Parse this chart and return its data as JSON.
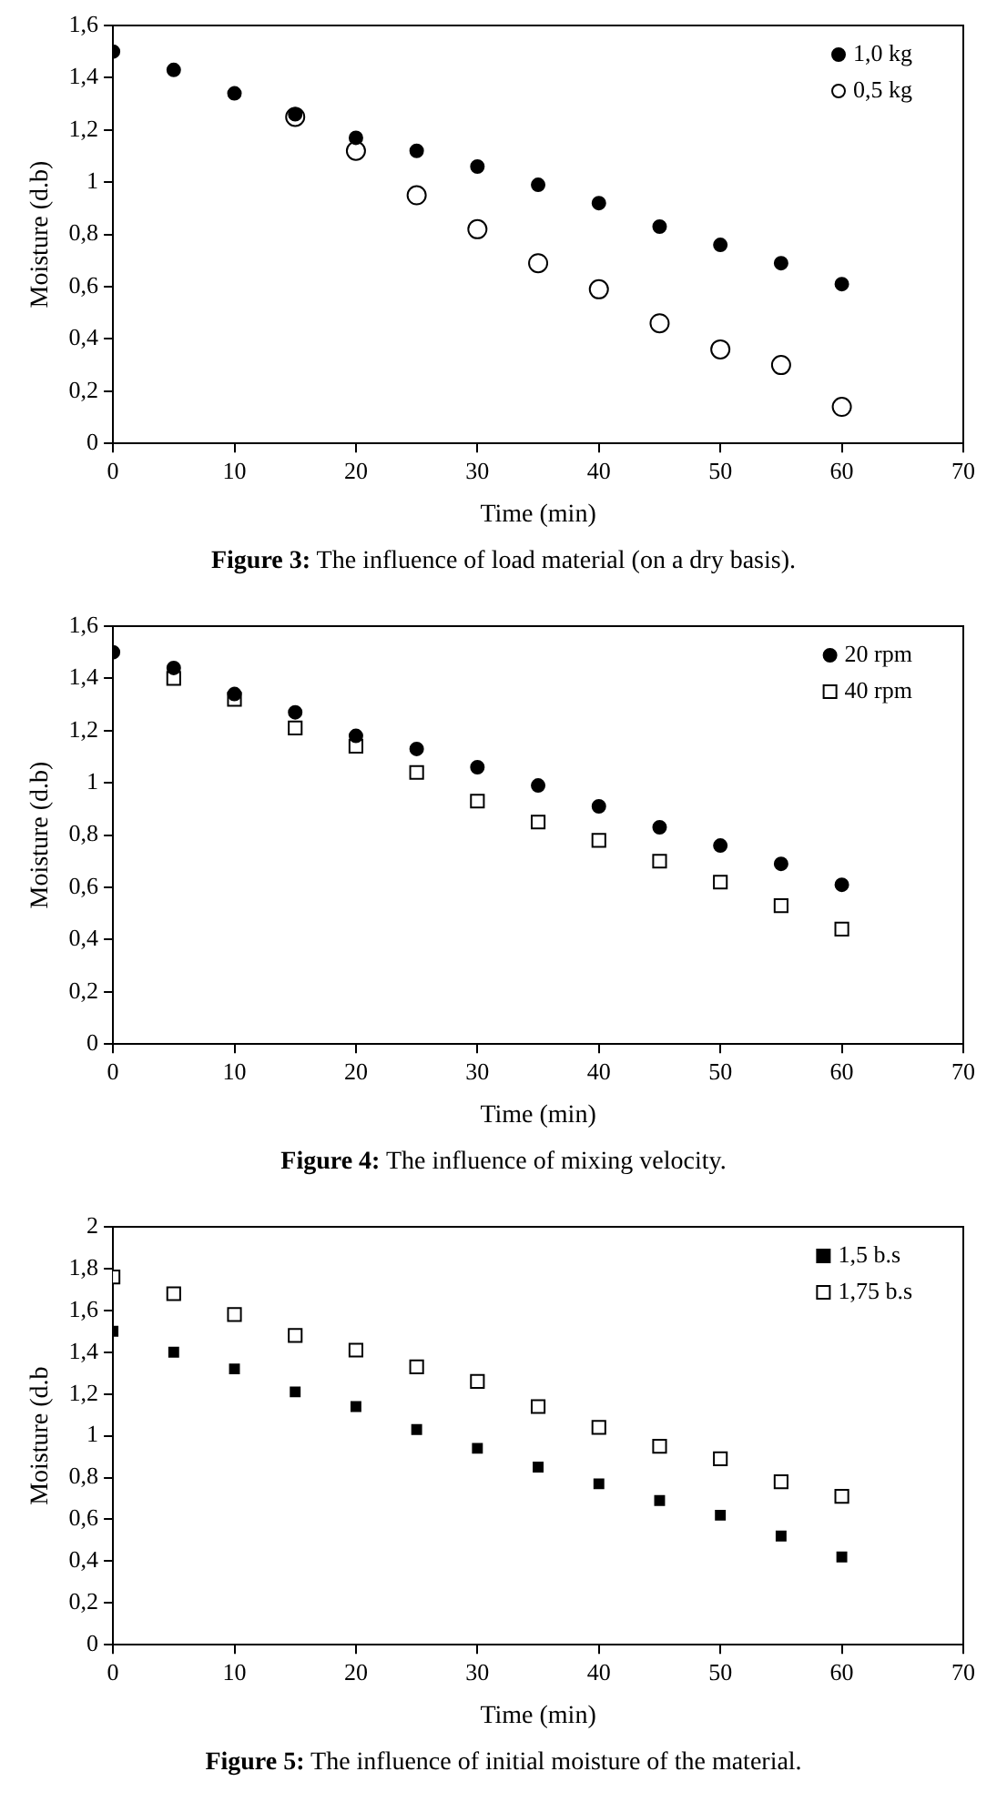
{
  "chart_data": [
    {
      "type": "scatter",
      "xlabel": "Time (min)",
      "ylabel": "Moisture (d.b)",
      "annotations": [
        "Figure 3: The influence of load material (on a dry basis)."
      ],
      "x": [
        0,
        5,
        10,
        15,
        20,
        25,
        30,
        35,
        40,
        45,
        50,
        55,
        60
      ],
      "series": [
        {
          "name": "1,0 kg",
          "color": "#000000",
          "marker": "circle",
          "values": [
            1.5,
            1.43,
            1.34,
            1.26,
            1.17,
            1.12,
            1.06,
            0.99,
            0.92,
            0.83,
            0.76,
            0.69,
            0.61
          ]
        },
        {
          "name": "0,5 kg",
          "color": "#ffffff",
          "marker": "circle",
          "values": [
            null,
            null,
            null,
            1.25,
            1.12,
            0.95,
            0.82,
            0.69,
            0.59,
            0.46,
            0.36,
            0.3,
            0.14
          ]
        }
      ],
      "xlim": [
        0,
        70
      ],
      "xticks": [
        0,
        10,
        20,
        30,
        40,
        50,
        60,
        70
      ],
      "ylim": [
        0,
        1.6
      ],
      "yticks": [
        {
          "value": 0,
          "label": "0"
        },
        {
          "value": 0.2,
          "label": "0,2"
        },
        {
          "value": 0.4,
          "label": "0,4"
        },
        {
          "value": 0.6,
          "label": "0,6"
        },
        {
          "value": 0.8,
          "label": "0,8"
        },
        {
          "value": 1,
          "label": "1"
        },
        {
          "value": 1.2,
          "label": "1,2"
        },
        {
          "value": 1.4,
          "label": "1,4"
        },
        {
          "value": 1.6,
          "label": "1,6"
        }
      ],
      "grid": false,
      "legend": "top right"
    },
    {
      "type": "scatter",
      "xlabel": "Time (min)",
      "ylabel": "Moisture (d.b)",
      "annotations": [
        "Figure 4: The influence of mixing velocity."
      ],
      "x": [
        0,
        5,
        10,
        15,
        20,
        25,
        30,
        35,
        40,
        45,
        50,
        55,
        60
      ],
      "series": [
        {
          "name": "20 rpm",
          "color": "#000000",
          "marker": "circle",
          "values": [
            1.5,
            1.44,
            1.34,
            1.27,
            1.18,
            1.13,
            1.06,
            0.99,
            0.91,
            0.83,
            0.76,
            0.69,
            0.61
          ]
        },
        {
          "name": "40 rpm",
          "color": "#ffffff",
          "marker": "square",
          "values": [
            null,
            1.4,
            1.32,
            1.21,
            1.14,
            1.04,
            0.93,
            0.85,
            0.78,
            0.7,
            0.62,
            0.53,
            0.44
          ]
        }
      ],
      "xlim": [
        0,
        70
      ],
      "xticks": [
        0,
        10,
        20,
        30,
        40,
        50,
        60,
        70
      ],
      "ylim": [
        0,
        1.6
      ],
      "yticks": [
        {
          "value": 0,
          "label": "0"
        },
        {
          "value": 0.2,
          "label": "0,2"
        },
        {
          "value": 0.4,
          "label": "0,4"
        },
        {
          "value": 0.6,
          "label": "0,6"
        },
        {
          "value": 0.8,
          "label": "0,8"
        },
        {
          "value": 1,
          "label": "1"
        },
        {
          "value": 1.2,
          "label": "1,2"
        },
        {
          "value": 1.4,
          "label": "1,4"
        },
        {
          "value": 1.6,
          "label": "1,6"
        }
      ],
      "grid": false,
      "legend": "top right"
    },
    {
      "type": "scatter",
      "xlabel": "Time (min)",
      "ylabel": "Moisture (d.b",
      "annotations": [
        "Figure 5: The influence of initial moisture of the material."
      ],
      "x": [
        0,
        5,
        10,
        15,
        20,
        25,
        30,
        35,
        40,
        45,
        50,
        55,
        60
      ],
      "series": [
        {
          "name": "1,5 b.s",
          "color": "#000000",
          "marker": "square",
          "values": [
            1.5,
            1.4,
            1.32,
            1.21,
            1.14,
            1.03,
            0.94,
            0.85,
            0.77,
            0.69,
            0.62,
            0.52,
            0.42
          ]
        },
        {
          "name": "1,75 b.s",
          "color": "#ffffff",
          "marker": "square",
          "values": [
            1.76,
            1.68,
            1.58,
            1.48,
            1.41,
            1.33,
            1.26,
            1.14,
            1.04,
            0.95,
            0.89,
            0.78,
            0.71
          ]
        }
      ],
      "xlim": [
        0,
        70
      ],
      "xticks": [
        0,
        10,
        20,
        30,
        40,
        50,
        60,
        70
      ],
      "ylim": [
        0,
        2
      ],
      "yticks": [
        {
          "value": 0,
          "label": "0"
        },
        {
          "value": 0.2,
          "label": "0,2"
        },
        {
          "value": 0.4,
          "label": "0,4"
        },
        {
          "value": 0.6,
          "label": "0,6"
        },
        {
          "value": 0.8,
          "label": "0,8"
        },
        {
          "value": 1,
          "label": "1"
        },
        {
          "value": 1.2,
          "label": "1,2"
        },
        {
          "value": 1.4,
          "label": "1,4"
        },
        {
          "value": 1.6,
          "label": "1,6"
        },
        {
          "value": 1.8,
          "label": "1,8"
        },
        {
          "value": 2,
          "label": "2"
        }
      ],
      "grid": false,
      "legend": "top right"
    }
  ]
}
